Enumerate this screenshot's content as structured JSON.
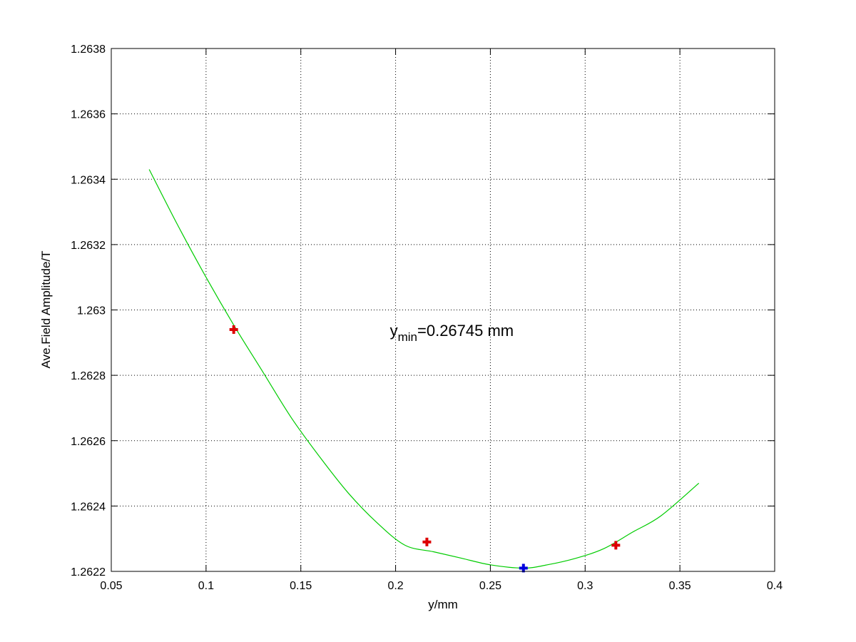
{
  "chart_data": {
    "type": "line",
    "xlabel": "y/mm",
    "ylabel": "Ave.Field Amplitude/T",
    "xlim": [
      0.05,
      0.4
    ],
    "ylim": [
      1.2622,
      1.2638
    ],
    "x_ticks": [
      "0.05",
      "0.1",
      "0.15",
      "0.2",
      "0.25",
      "0.3",
      "0.35",
      "0.4"
    ],
    "y_ticks": [
      "1.2622",
      "1.2624",
      "1.2626",
      "1.2628",
      "1.263",
      "1.2632",
      "1.2634",
      "1.2636",
      "1.2638"
    ],
    "grid": true,
    "series": [
      {
        "style": "line",
        "color": "#00cc00",
        "x": [
          0.07,
          0.085,
          0.1,
          0.115,
          0.13,
          0.145,
          0.16,
          0.175,
          0.19,
          0.205,
          0.22,
          0.235,
          0.25,
          0.26745,
          0.28,
          0.295,
          0.31,
          0.325,
          0.34,
          0.36
        ],
        "values": [
          1.26343,
          1.26326,
          1.2631,
          1.26295,
          1.26281,
          1.26267,
          1.26255,
          1.26244,
          1.26235,
          1.26228,
          1.26226,
          1.26224,
          1.26222,
          1.26221,
          1.26222,
          1.26224,
          1.26227,
          1.26232,
          1.26237,
          1.26247
        ]
      },
      {
        "style": "markers",
        "color": "#dd0000",
        "marker": "plus",
        "x": [
          0.1146,
          0.2165,
          0.3162
        ],
        "values": [
          1.26294,
          1.26229,
          1.26228
        ]
      },
      {
        "style": "markers",
        "color": "#0000dd",
        "marker": "plus",
        "x": [
          0.26745
        ],
        "values": [
          1.26221
        ]
      }
    ],
    "annotations": [
      {
        "base": "y",
        "sub": "min",
        "rest": "=0.26745 mm",
        "x": 0.197,
        "y": 1.26292
      }
    ]
  }
}
